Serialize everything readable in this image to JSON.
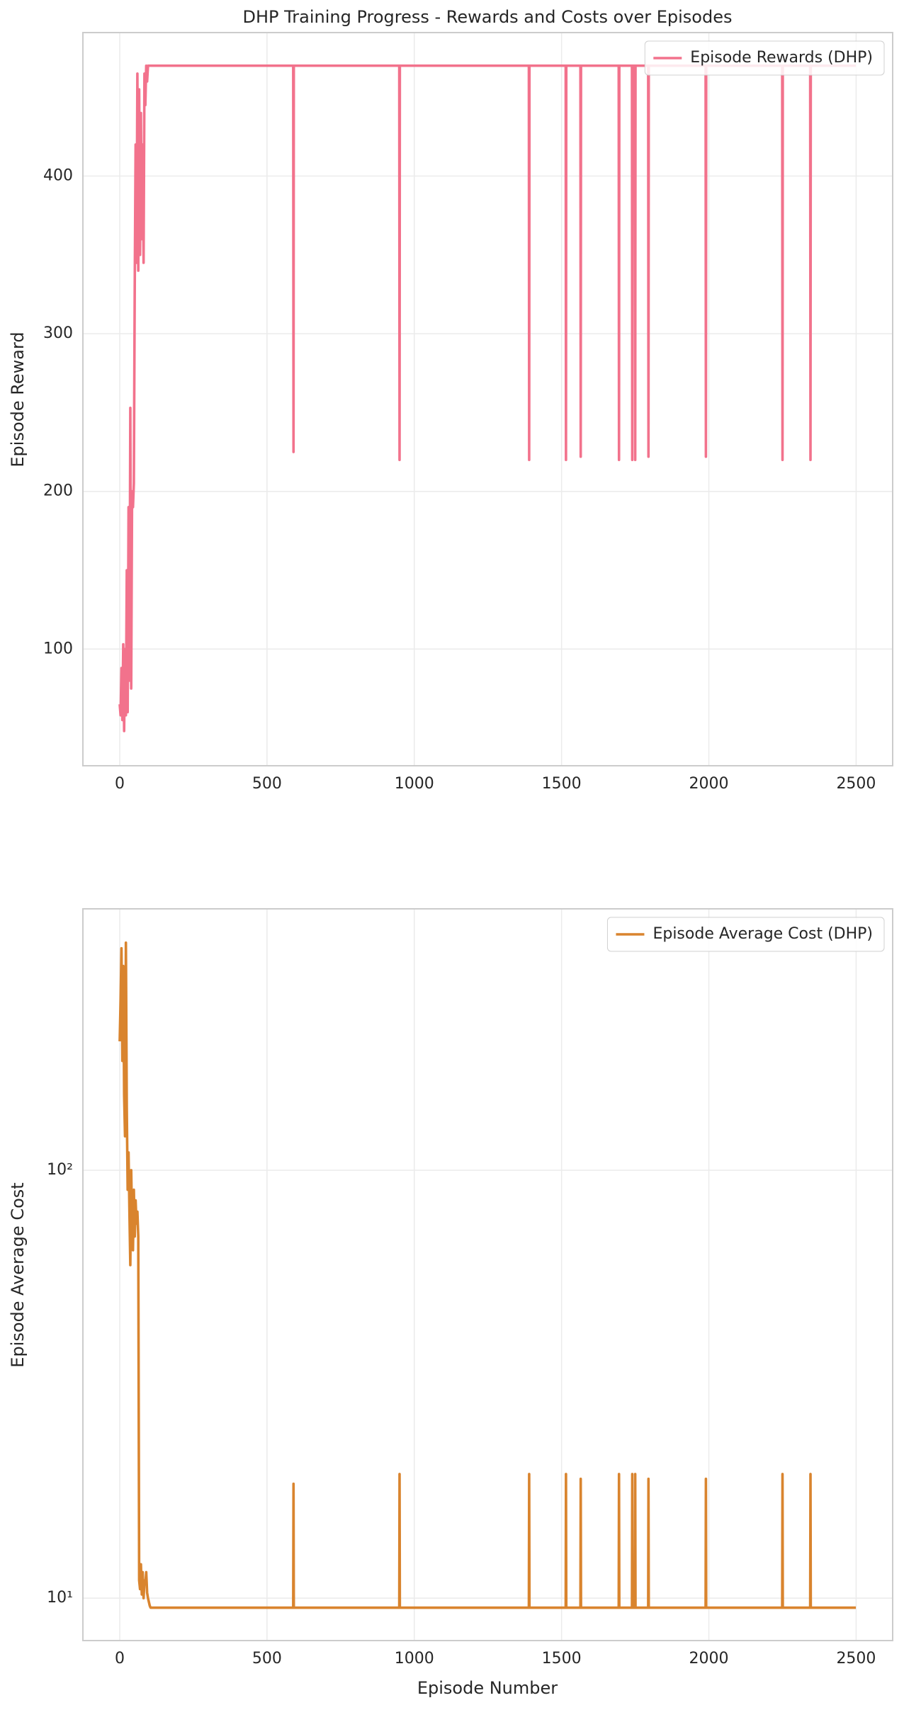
{
  "chart_data": [
    {
      "type": "line",
      "title": "DHP Training Progress - Rewards and Costs over Episodes",
      "ylabel": "Episode Reward",
      "x": [
        0,
        3,
        6,
        9,
        12,
        15,
        18,
        21,
        24,
        27,
        30,
        33,
        36,
        39,
        42,
        45,
        48,
        51,
        54,
        57,
        60,
        63,
        66,
        69,
        72,
        75,
        78,
        81,
        84,
        87,
        90,
        93,
        96,
        99,
        102,
        105,
        110,
        589,
        590,
        591,
        949,
        950,
        951,
        1389,
        1390,
        1391,
        1514,
        1515,
        1516,
        1564,
        1565,
        1566,
        1694,
        1695,
        1696,
        1739,
        1740,
        1741,
        1749,
        1750,
        1751,
        1794,
        1795,
        1796,
        1989,
        1990,
        1991,
        2249,
        2250,
        2251,
        2344,
        2345,
        2346,
        2499
      ],
      "series": [
        {
          "name": "Episode Rewards (DHP)",
          "color": "#f2728c",
          "values": [
            65,
            58,
            88,
            55,
            103,
            48,
            100,
            58,
            150,
            60,
            190,
            80,
            253,
            75,
            200,
            190,
            205,
            330,
            420,
            345,
            465,
            340,
            455,
            350,
            440,
            360,
            420,
            345,
            465,
            445,
            470,
            460,
            470,
            470,
            470,
            470,
            470,
            470,
            225,
            470,
            470,
            220,
            470,
            470,
            220,
            470,
            470,
            220,
            470,
            470,
            222,
            470,
            470,
            220,
            470,
            470,
            220,
            470,
            470,
            220,
            470,
            470,
            222,
            470,
            470,
            222,
            470,
            470,
            220,
            470,
            470,
            220,
            470,
            470
          ]
        }
      ],
      "xlim": [
        -125,
        2624
      ],
      "xticks": [
        0,
        500,
        1000,
        1500,
        2000,
        2500
      ],
      "ylim": [
        26,
        491
      ],
      "yticks": [
        100,
        200,
        300,
        400
      ],
      "yscale": "linear",
      "grid": true,
      "legend": "upper right"
    },
    {
      "type": "line",
      "xlabel": "Episode Number",
      "ylabel": "Episode Average Cost",
      "x": [
        0,
        3,
        6,
        9,
        12,
        15,
        18,
        21,
        24,
        27,
        30,
        33,
        36,
        39,
        42,
        45,
        48,
        51,
        54,
        57,
        60,
        63,
        66,
        69,
        72,
        75,
        78,
        81,
        84,
        87,
        90,
        93,
        96,
        99,
        102,
        105,
        110,
        589,
        590,
        591,
        949,
        950,
        951,
        1389,
        1390,
        1391,
        1514,
        1515,
        1516,
        1564,
        1565,
        1566,
        1694,
        1695,
        1696,
        1739,
        1740,
        1741,
        1749,
        1750,
        1751,
        1794,
        1795,
        1796,
        1989,
        1990,
        1991,
        2249,
        2250,
        2251,
        2344,
        2345,
        2346,
        2499
      ],
      "series": [
        {
          "name": "Episode Average Cost (DHP)",
          "color": "#d9842e",
          "values": [
            200,
            250,
            330,
            180,
            300,
            150,
            120,
            340,
            140,
            90,
            110,
            80,
            60,
            100,
            75,
            65,
            90,
            70,
            85,
            75,
            80,
            70,
            11,
            10.5,
            12,
            10.2,
            11.5,
            10,
            11,
            10.8,
            11.5,
            10.3,
            10,
            9.8,
            9.6,
            9.5,
            9.5,
            9.5,
            18.5,
            9.5,
            9.5,
            19.5,
            9.5,
            9.5,
            19.5,
            9.5,
            9.5,
            19.5,
            9.5,
            9.5,
            19,
            9.5,
            9.5,
            19.5,
            9.5,
            9.5,
            19.5,
            9.5,
            9.5,
            19.5,
            9.5,
            9.5,
            19,
            9.5,
            9.5,
            19,
            9.5,
            9.5,
            19.5,
            9.5,
            9.5,
            19.5,
            9.5,
            9.5
          ]
        }
      ],
      "xlim": [
        -125,
        2624
      ],
      "xticks": [
        0,
        500,
        1000,
        1500,
        2000,
        2500
      ],
      "ylim": [
        7.96,
        408
      ],
      "yticks": [
        {
          "value": 10,
          "label": "10¹"
        },
        {
          "value": 100,
          "label": "10²"
        }
      ],
      "yscale": "log",
      "grid": true,
      "legend": "upper right"
    }
  ]
}
